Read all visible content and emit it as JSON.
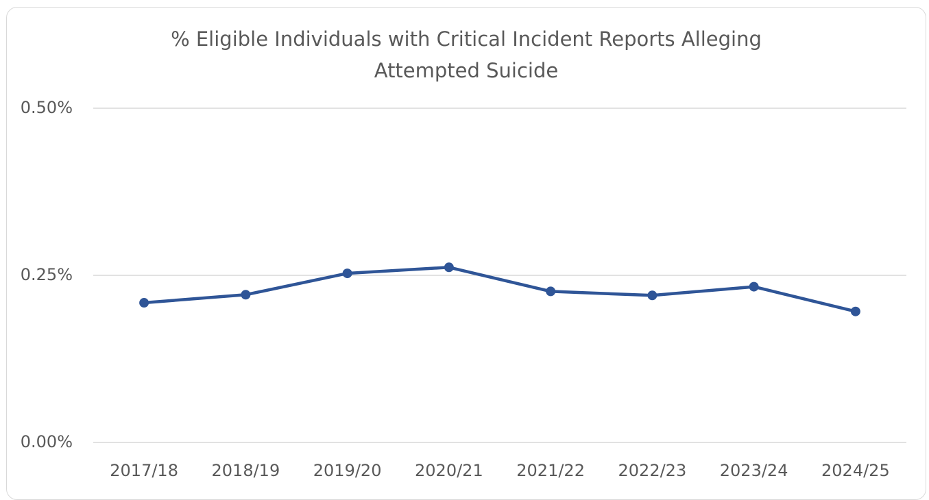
{
  "chart_data": {
    "type": "line",
    "title": "% Eligible Individuals with Critical Incident Reports Alleging Attempted Suicide",
    "categories": [
      "2017/18",
      "2018/19",
      "2019/20",
      "2020/21",
      "2021/22",
      "2022/23",
      "2023/24",
      "2024/25"
    ],
    "values": [
      0.209,
      0.221,
      0.253,
      0.262,
      0.226,
      0.22,
      0.233,
      0.196
    ],
    "color": "#2f5597",
    "ylim": [
      0,
      0.5
    ],
    "yticks": [
      {
        "value": 0,
        "label": "0.00%"
      },
      {
        "value": 0.25,
        "label": "0.25%"
      },
      {
        "value": 0.5,
        "label": "0.50%"
      }
    ],
    "grid": true
  }
}
